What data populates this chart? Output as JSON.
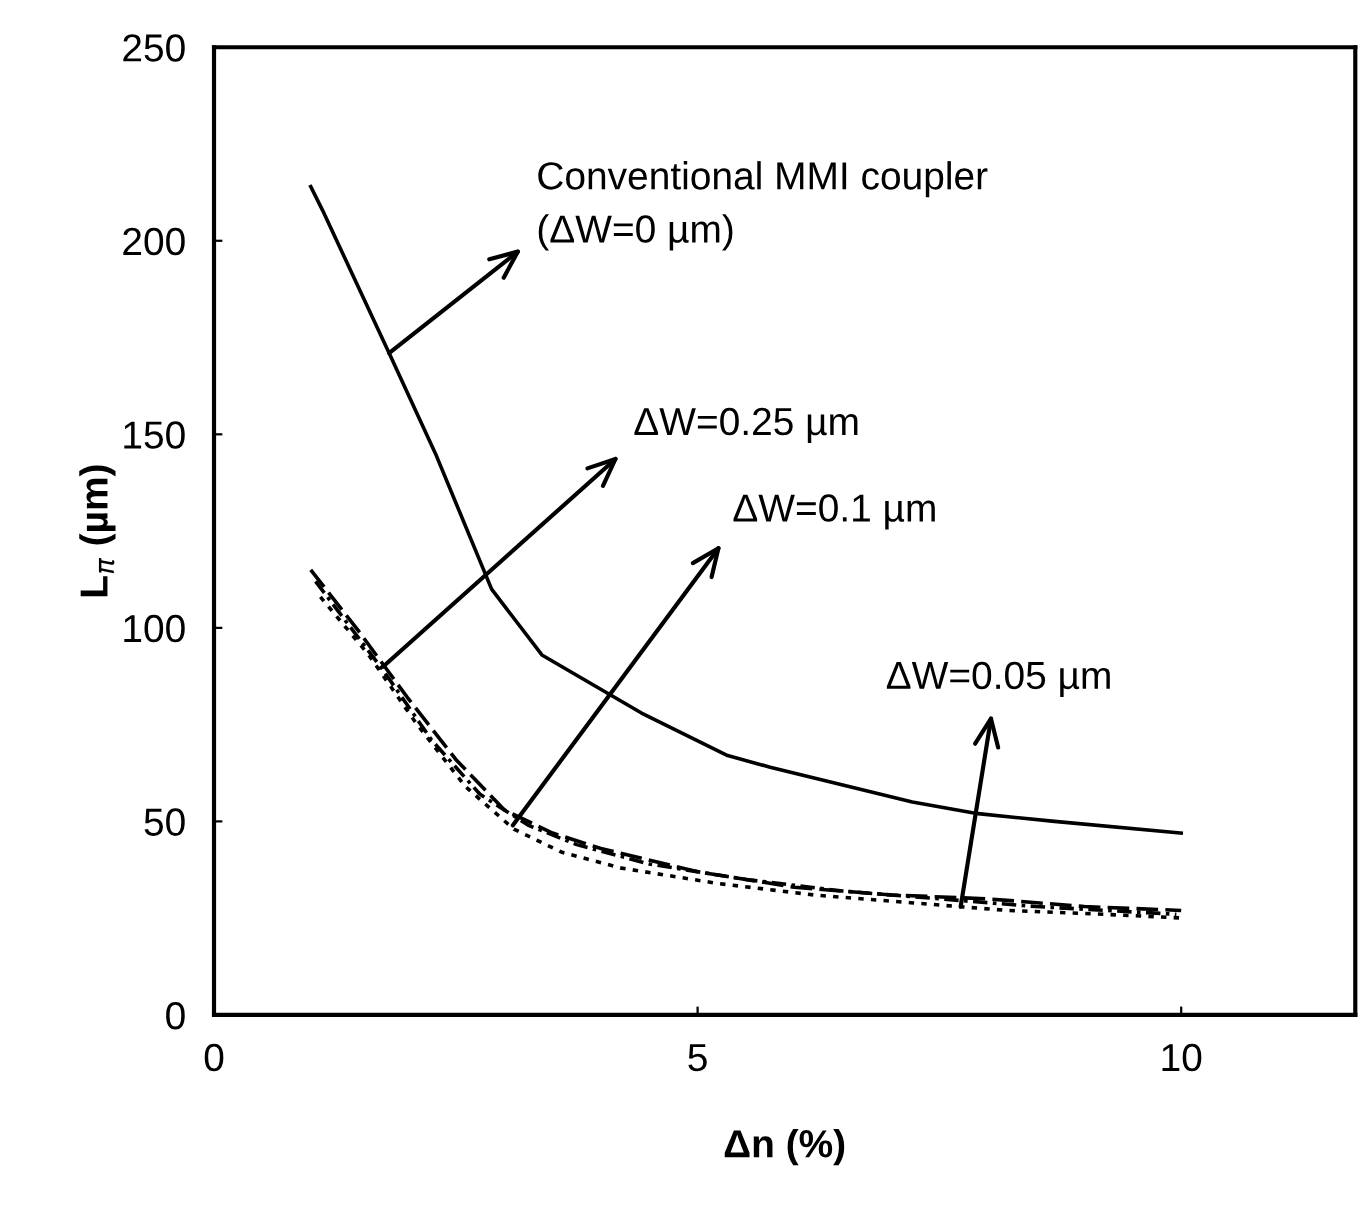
{
  "chart_data": {
    "type": "line",
    "xlabel": "Δn (%)",
    "ylabel": "L$_{π}$ (µm)",
    "xlim": [
      0,
      11.8
    ],
    "ylim": [
      0,
      250
    ],
    "xticks": [
      0,
      5,
      10
    ],
    "yticks": [
      0,
      50,
      100,
      150,
      200,
      250
    ],
    "grid": false,
    "legend": false,
    "marker": "none",
    "series": [
      {
        "color": "#000000",
        "line_style": "solid",
        "x": [
          1,
          1.12,
          1.81,
          2.29,
          2.87,
          3.39,
          4.42,
          5.31,
          5.75,
          7.22,
          7.9,
          8.69,
          10
        ],
        "values": [
          214,
          208,
          171,
          145,
          110,
          93,
          78,
          67,
          64,
          55,
          52,
          50,
          47
        ]
      },
      {
        "color": "#000000",
        "line_style": "dashed",
        "x": [
          1,
          1.5,
          2,
          2.5,
          3,
          3.5,
          4,
          5,
          6,
          7,
          8,
          9,
          10
        ],
        "values": [
          115,
          99,
          82,
          66,
          53,
          47,
          43,
          37,
          33,
          31,
          30,
          28,
          27
        ]
      },
      {
        "color": "#000000",
        "line_style": "dashed",
        "x": [
          1.05,
          1.75,
          2.25,
          2.75,
          3.25,
          3.75,
          4.5,
          5.5,
          6.5,
          7.5,
          8.5,
          9.95
        ],
        "values": [
          112,
          89,
          71,
          57,
          49,
          44,
          39,
          35,
          32,
          30,
          28,
          26
        ]
      },
      {
        "color": "#000000",
        "line_style": "dotted",
        "x": [
          1.1,
          1.6,
          2.1,
          2.6,
          3.1,
          3.6,
          4.2,
          5.2,
          6.2,
          7.2,
          8.2,
          9.2,
          10.05
        ],
        "values": [
          108,
          93,
          75,
          59,
          48,
          42,
          38,
          34,
          31,
          29,
          27,
          26,
          25
        ]
      }
    ],
    "annotations": [
      {
        "text": "Conventional MMI coupler\n(ΔW=0 µm)",
        "x": 1.81,
        "y": 171
      },
      {
        "text": "ΔW=0.25 µm",
        "x": 1.75,
        "y": 90
      },
      {
        "text": "ΔW=0.1 µm",
        "x": 3.09,
        "y": 49
      },
      {
        "text": "ΔW=0.05 µm",
        "x": 7.72,
        "y": 28
      }
    ]
  }
}
